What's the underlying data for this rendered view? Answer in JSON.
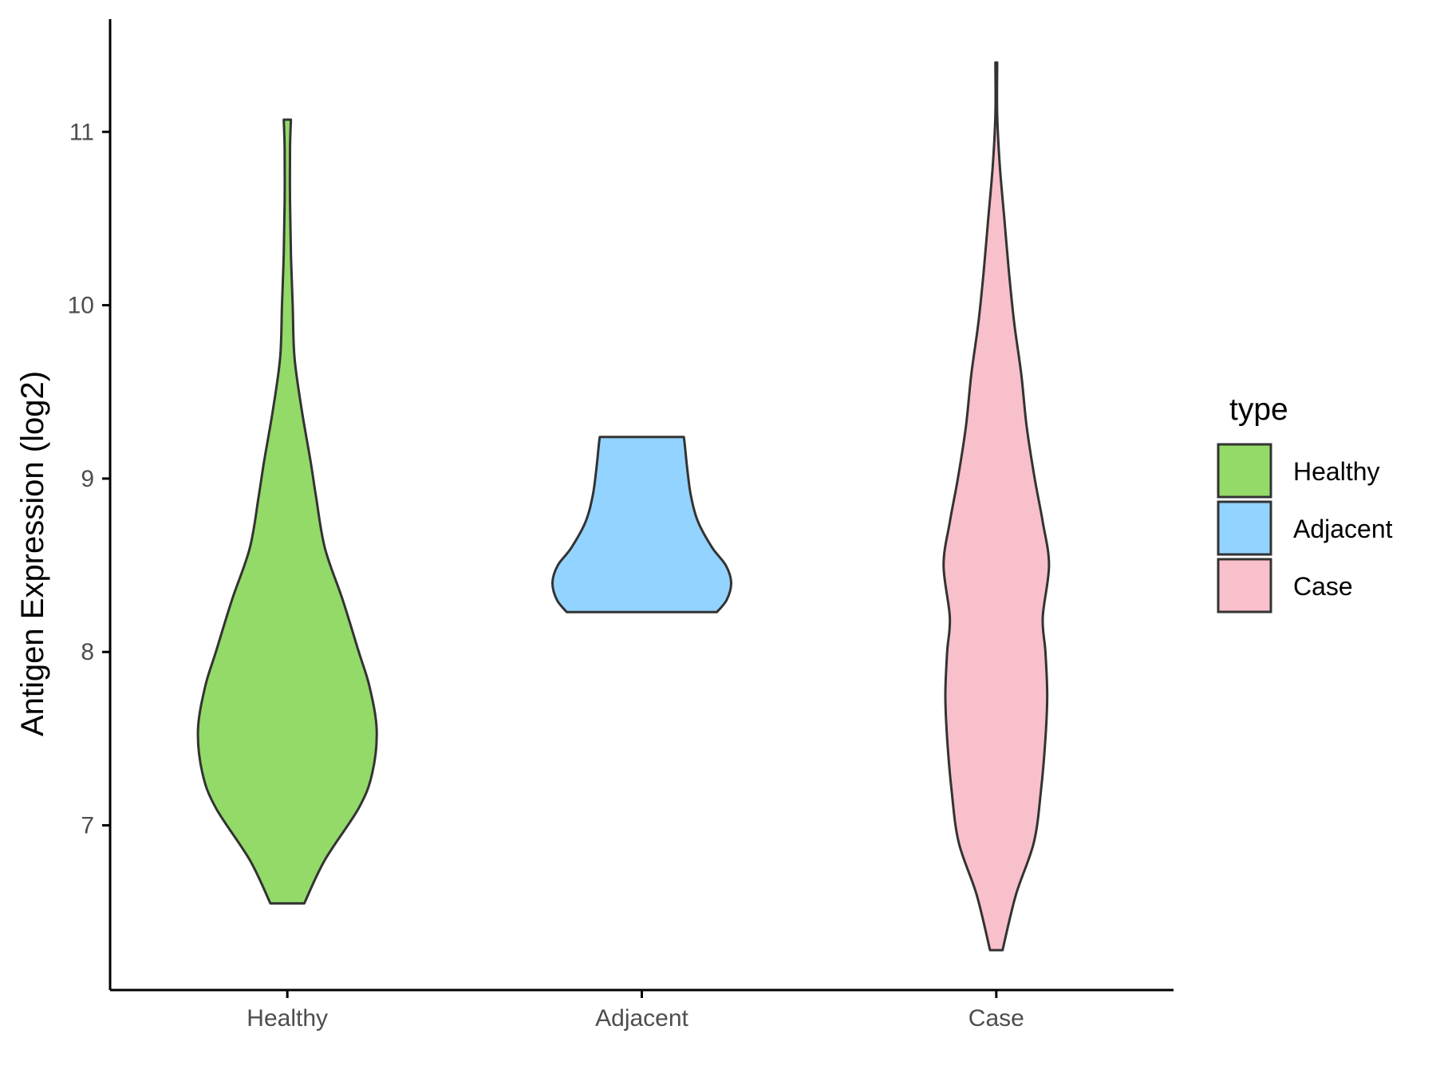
{
  "chart_data": {
    "type": "violin",
    "title": "",
    "xlabel": "",
    "ylabel": "Antigen Expression (log2)",
    "ylim": [
      6.05,
      11.65
    ],
    "yticks": [
      7,
      8,
      9,
      10,
      11
    ],
    "categories": [
      "Healthy",
      "Adjacent",
      "Case"
    ],
    "legend": {
      "title": "type",
      "position": "right",
      "items": [
        {
          "label": "Healthy",
          "color": "#93DA69"
        },
        {
          "label": "Adjacent",
          "color": "#93D3FF"
        },
        {
          "label": "Case",
          "color": "#F8C0CB"
        }
      ]
    },
    "series": [
      {
        "category": "Healthy",
        "color": "#93DA69",
        "min": 6.55,
        "max": 11.07,
        "density": [
          [
            6.55,
            0.19
          ],
          [
            6.8,
            0.42
          ],
          [
            7.1,
            0.8
          ],
          [
            7.3,
            0.95
          ],
          [
            7.55,
            1.0
          ],
          [
            7.8,
            0.92
          ],
          [
            8.0,
            0.8
          ],
          [
            8.3,
            0.62
          ],
          [
            8.6,
            0.42
          ],
          [
            8.9,
            0.32
          ],
          [
            9.1,
            0.26
          ],
          [
            9.4,
            0.16
          ],
          [
            9.7,
            0.08
          ],
          [
            10.0,
            0.06
          ],
          [
            10.3,
            0.04
          ],
          [
            10.6,
            0.03
          ],
          [
            10.9,
            0.03
          ],
          [
            11.07,
            0.04
          ]
        ]
      },
      {
        "category": "Adjacent",
        "color": "#93D3FF",
        "min": 8.23,
        "max": 9.24,
        "density": [
          [
            8.23,
            0.84
          ],
          [
            8.3,
            0.95
          ],
          [
            8.4,
            1.0
          ],
          [
            8.5,
            0.94
          ],
          [
            8.6,
            0.79
          ],
          [
            8.75,
            0.63
          ],
          [
            8.9,
            0.55
          ],
          [
            9.05,
            0.51
          ],
          [
            9.2,
            0.48
          ],
          [
            9.24,
            0.47
          ]
        ]
      },
      {
        "category": "Case",
        "color": "#F8C0CB",
        "min": 6.28,
        "max": 11.4,
        "density": [
          [
            6.28,
            0.07
          ],
          [
            6.6,
            0.22
          ],
          [
            6.9,
            0.42
          ],
          [
            7.2,
            0.5
          ],
          [
            7.5,
            0.55
          ],
          [
            7.75,
            0.57
          ],
          [
            8.0,
            0.55
          ],
          [
            8.2,
            0.52
          ],
          [
            8.5,
            0.59
          ],
          [
            8.75,
            0.52
          ],
          [
            9.0,
            0.43
          ],
          [
            9.3,
            0.34
          ],
          [
            9.6,
            0.28
          ],
          [
            9.9,
            0.2
          ],
          [
            10.2,
            0.14
          ],
          [
            10.5,
            0.09
          ],
          [
            10.8,
            0.04
          ],
          [
            11.1,
            0.01
          ],
          [
            11.4,
            0.01
          ]
        ]
      }
    ]
  }
}
